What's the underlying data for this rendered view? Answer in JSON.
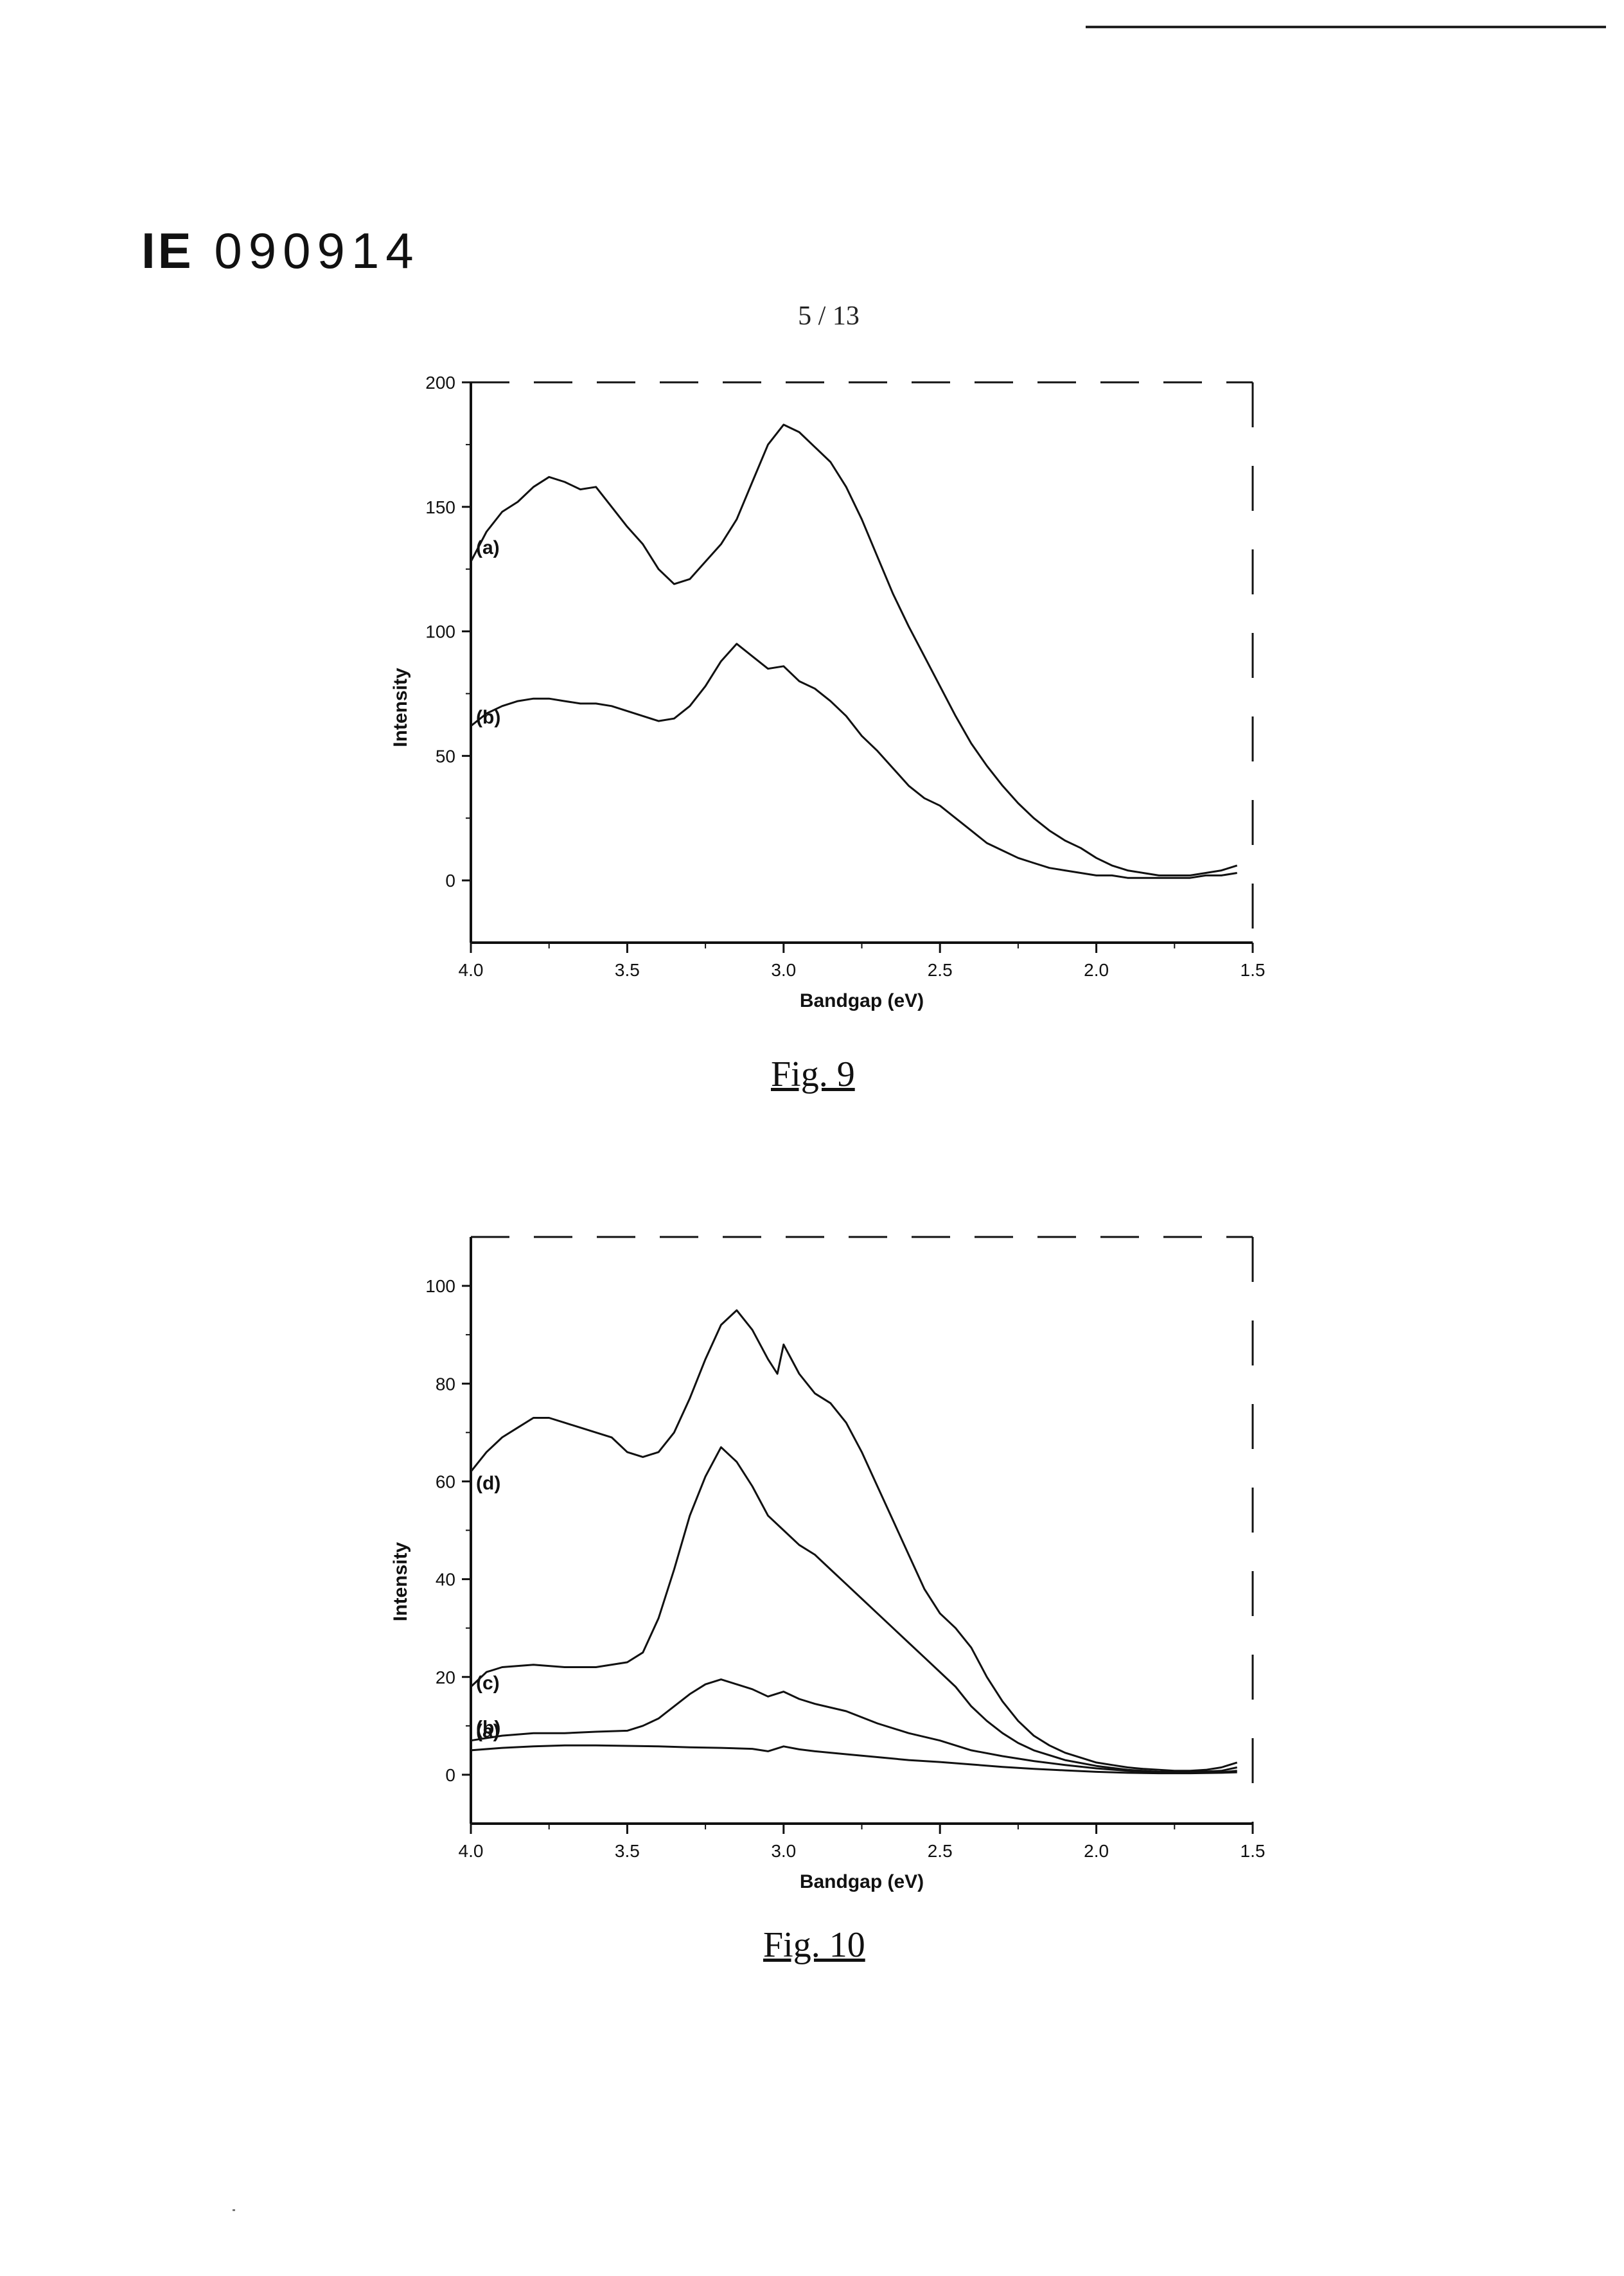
{
  "header": {
    "doc_prefix": "IE",
    "doc_number": "090914",
    "page": "5 / 13"
  },
  "colors": {
    "ink": "#111111",
    "frame": "#222222"
  },
  "chart_data": [
    {
      "type": "line",
      "caption": "Fig. 9",
      "xlabel": "Bandgap (eV)",
      "ylabel": "Intensity",
      "xlim": [
        4.0,
        1.5
      ],
      "ylim": [
        -25,
        200
      ],
      "xticks": [
        "4.0",
        "3.5",
        "3.0",
        "2.5",
        "2.0",
        "1.5"
      ],
      "yticks": [
        "0",
        "50",
        "100",
        "150",
        "200"
      ],
      "grid": false,
      "series": [
        {
          "name": "(a)",
          "x": [
            4.0,
            3.95,
            3.9,
            3.85,
            3.8,
            3.75,
            3.7,
            3.65,
            3.6,
            3.55,
            3.5,
            3.45,
            3.4,
            3.35,
            3.3,
            3.25,
            3.2,
            3.15,
            3.1,
            3.05,
            3.0,
            2.95,
            2.9,
            2.85,
            2.8,
            2.75,
            2.7,
            2.65,
            2.6,
            2.55,
            2.5,
            2.45,
            2.4,
            2.35,
            2.3,
            2.25,
            2.2,
            2.15,
            2.1,
            2.05,
            2.0,
            1.95,
            1.9,
            1.85,
            1.8,
            1.75,
            1.7,
            1.65,
            1.6,
            1.55
          ],
          "values": [
            128,
            140,
            148,
            152,
            158,
            162,
            160,
            157,
            158,
            150,
            142,
            135,
            125,
            119,
            121,
            128,
            135,
            145,
            160,
            175,
            183,
            180,
            174,
            168,
            158,
            145,
            130,
            115,
            102,
            90,
            78,
            66,
            55,
            46,
            38,
            31,
            25,
            20,
            16,
            13,
            9,
            6,
            4,
            3,
            2,
            2,
            2,
            3,
            4,
            6
          ]
        },
        {
          "name": "(b)",
          "x": [
            4.0,
            3.95,
            3.9,
            3.85,
            3.8,
            3.75,
            3.7,
            3.65,
            3.6,
            3.55,
            3.5,
            3.45,
            3.4,
            3.35,
            3.3,
            3.25,
            3.2,
            3.15,
            3.1,
            3.05,
            3.0,
            2.95,
            2.9,
            2.85,
            2.8,
            2.75,
            2.7,
            2.65,
            2.6,
            2.55,
            2.5,
            2.45,
            2.4,
            2.35,
            2.3,
            2.25,
            2.2,
            2.15,
            2.1,
            2.05,
            2.0,
            1.95,
            1.9,
            1.85,
            1.8,
            1.75,
            1.7,
            1.65,
            1.6,
            1.55
          ],
          "values": [
            62,
            67,
            70,
            72,
            73,
            73,
            72,
            71,
            71,
            70,
            68,
            66,
            64,
            65,
            70,
            78,
            88,
            95,
            90,
            85,
            86,
            80,
            77,
            72,
            66,
            58,
            52,
            45,
            38,
            33,
            30,
            25,
            20,
            15,
            12,
            9,
            7,
            5,
            4,
            3,
            2,
            2,
            1,
            1,
            1,
            1,
            1,
            2,
            2,
            3
          ]
        }
      ]
    },
    {
      "type": "line",
      "caption": "Fig. 10",
      "xlabel": "Bandgap (eV)",
      "ylabel": "Intensity",
      "xlim": [
        4.0,
        1.5
      ],
      "ylim": [
        -10,
        110
      ],
      "xticks": [
        "4.0",
        "3.5",
        "3.0",
        "2.5",
        "2.0",
        "1.5"
      ],
      "yticks": [
        "0",
        "20",
        "40",
        "60",
        "80",
        "100"
      ],
      "grid": false,
      "series": [
        {
          "name": "(a)",
          "x": [
            4.0,
            3.9,
            3.8,
            3.7,
            3.6,
            3.5,
            3.4,
            3.3,
            3.2,
            3.1,
            3.05,
            3.0,
            2.95,
            2.9,
            2.8,
            2.7,
            2.6,
            2.5,
            2.4,
            2.3,
            2.2,
            2.1,
            2.0,
            1.9,
            1.8,
            1.7,
            1.6,
            1.55
          ],
          "values": [
            5,
            5.5,
            5.8,
            6,
            6,
            5.9,
            5.8,
            5.6,
            5.5,
            5.3,
            4.8,
            5.8,
            5.2,
            4.8,
            4.2,
            3.6,
            3.0,
            2.6,
            2.1,
            1.6,
            1.2,
            0.9,
            0.6,
            0.4,
            0.3,
            0.3,
            0.4,
            0.5
          ]
        },
        {
          "name": "(b)",
          "x": [
            4.0,
            3.9,
            3.8,
            3.7,
            3.6,
            3.5,
            3.45,
            3.4,
            3.35,
            3.3,
            3.25,
            3.2,
            3.15,
            3.1,
            3.05,
            3.0,
            2.95,
            2.9,
            2.8,
            2.7,
            2.6,
            2.5,
            2.4,
            2.3,
            2.2,
            2.1,
            2.0,
            1.9,
            1.8,
            1.7,
            1.6,
            1.55
          ],
          "values": [
            7,
            8,
            8.5,
            8.5,
            8.8,
            9,
            10,
            11.5,
            14,
            16.5,
            18.5,
            19.5,
            18.5,
            17.5,
            16,
            17,
            15.5,
            14.5,
            13,
            10.5,
            8.5,
            7,
            5,
            3.8,
            2.8,
            2,
            1.3,
            0.8,
            0.5,
            0.4,
            0.5,
            0.8
          ]
        },
        {
          "name": "(c)",
          "x": [
            4.0,
            3.95,
            3.9,
            3.8,
            3.7,
            3.6,
            3.5,
            3.45,
            3.4,
            3.35,
            3.3,
            3.25,
            3.2,
            3.15,
            3.1,
            3.05,
            3.0,
            2.95,
            2.9,
            2.85,
            2.8,
            2.75,
            2.7,
            2.65,
            2.6,
            2.55,
            2.5,
            2.45,
            2.4,
            2.35,
            2.3,
            2.25,
            2.2,
            2.1,
            2.0,
            1.9,
            1.8,
            1.7,
            1.6,
            1.55
          ],
          "values": [
            18,
            21,
            22,
            22.5,
            22,
            22,
            23,
            25,
            32,
            42,
            53,
            61,
            67,
            64,
            59,
            53,
            50,
            47,
            45,
            42,
            39,
            36,
            33,
            30,
            27,
            24,
            21,
            18,
            14,
            11,
            8.5,
            6.5,
            5,
            3,
            1.8,
            1,
            0.6,
            0.5,
            0.8,
            1.5
          ]
        },
        {
          "name": "(d)",
          "x": [
            4.0,
            3.95,
            3.9,
            3.85,
            3.8,
            3.75,
            3.7,
            3.65,
            3.6,
            3.55,
            3.5,
            3.45,
            3.4,
            3.35,
            3.3,
            3.25,
            3.2,
            3.15,
            3.1,
            3.05,
            3.02,
            3.0,
            2.95,
            2.9,
            2.85,
            2.8,
            2.75,
            2.7,
            2.65,
            2.6,
            2.55,
            2.5,
            2.45,
            2.4,
            2.35,
            2.3,
            2.25,
            2.2,
            2.15,
            2.1,
            2.05,
            2.0,
            1.95,
            1.9,
            1.85,
            1.8,
            1.75,
            1.7,
            1.65,
            1.6,
            1.55
          ],
          "values": [
            62,
            66,
            69,
            71,
            73,
            73,
            72,
            71,
            70,
            69,
            66,
            65,
            66,
            70,
            77,
            85,
            92,
            95,
            91,
            85,
            82,
            88,
            82,
            78,
            76,
            72,
            66,
            59,
            52,
            45,
            38,
            33,
            30,
            26,
            20,
            15,
            11,
            8,
            6,
            4.5,
            3.5,
            2.5,
            2,
            1.5,
            1.2,
            1,
            0.8,
            0.8,
            1,
            1.5,
            2.5
          ]
        }
      ]
    }
  ]
}
